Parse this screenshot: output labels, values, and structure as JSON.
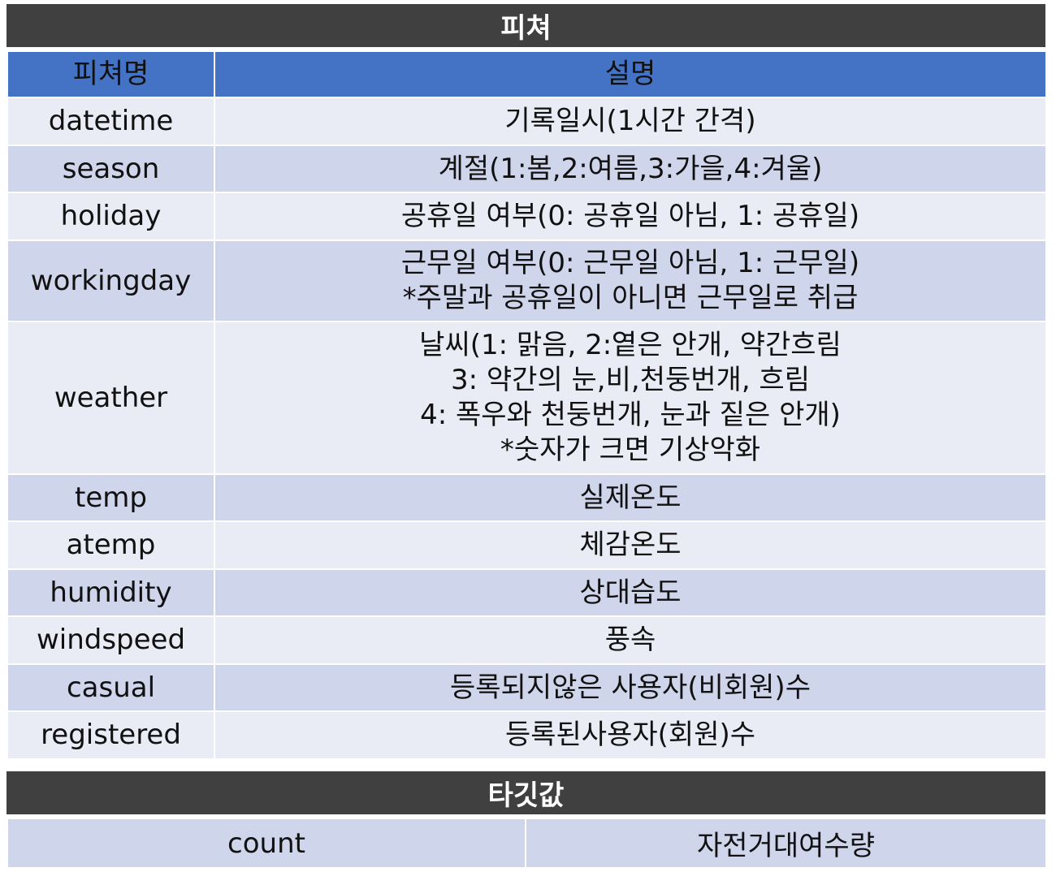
{
  "features_title": "피쳐",
  "header": {
    "name": "피쳐명",
    "description": "설명"
  },
  "rows": [
    {
      "name": "datetime",
      "lines": [
        "기록일시(1시간 간격)"
      ]
    },
    {
      "name": "season",
      "lines": [
        "계절(1:봄,2:여름,3:가을,4:겨울)"
      ]
    },
    {
      "name": "holiday",
      "lines": [
        "공휴일 여부(0: 공휴일 아님, 1: 공휴일)"
      ]
    },
    {
      "name": "workingday",
      "lines": [
        "근무일 여부(0: 근무일 아님, 1: 근무일)",
        "*주말과 공휴일이 아니면 근무일로 취급"
      ]
    },
    {
      "name": "weather",
      "lines": [
        "날씨(1: 맑음, 2:옅은 안개, 약간흐림",
        "3: 약간의 눈,비,천둥번개, 흐림",
        "4: 폭우와 천둥번개, 눈과 짙은 안개)",
        "*숫자가 크면 기상악화"
      ]
    },
    {
      "name": "temp",
      "lines": [
        "실제온도"
      ]
    },
    {
      "name": "atemp",
      "lines": [
        "체감온도"
      ]
    },
    {
      "name": "humidity",
      "lines": [
        "상대습도"
      ]
    },
    {
      "name": "windspeed",
      "lines": [
        "풍속"
      ]
    },
    {
      "name": "casual",
      "lines": [
        "등록되지않은 사용자(비회원)수"
      ]
    },
    {
      "name": "registered",
      "lines": [
        "등록된사용자(회원)수"
      ]
    }
  ],
  "target_title": "타깃값",
  "target": {
    "name": "count",
    "description": "자전거대여수량"
  },
  "colors": {
    "dark_bar": "#404040",
    "header_blue": "#4472c4",
    "row_light": "#e9ecf4",
    "row_dark": "#cfd5ea"
  }
}
